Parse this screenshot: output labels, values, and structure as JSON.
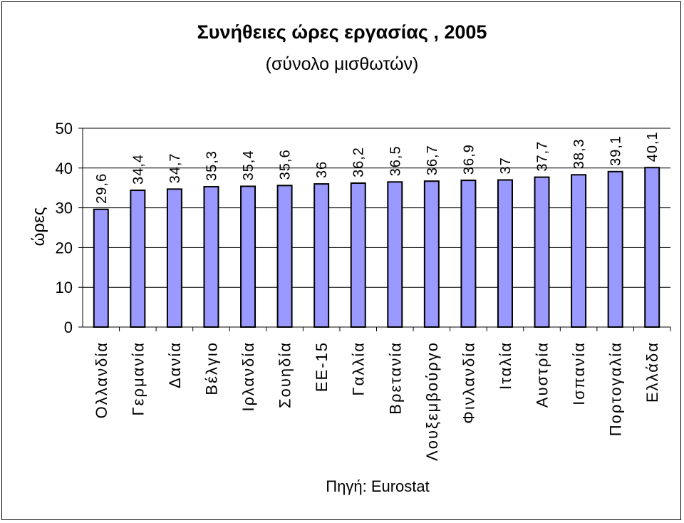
{
  "chart_data": {
    "type": "bar",
    "title": "Συνήθειες ώρες εργασίας , 2005",
    "subtitle": "(σύνολο μισθωτών)",
    "ylabel": "ώρες",
    "xlabel": "",
    "ylim": [
      0,
      50
    ],
    "yticks": [
      0,
      10,
      20,
      30,
      40,
      50
    ],
    "grid": true,
    "categories": [
      "Ολλανδία",
      "Γερμανία",
      "Δανία",
      "Βέλγιο",
      "Ιρλανδία",
      "Σουηδία",
      "ΕΕ-15",
      "Γαλλία",
      "Βρετανία",
      "Λουξεμβούργο",
      "Φινλανδία",
      "Ιταλία",
      "Αυστρία",
      "Ισπανία",
      "Πορτογαλία",
      "Ελλάδα"
    ],
    "values": [
      29.6,
      34.4,
      34.7,
      35.3,
      35.4,
      35.6,
      36,
      36.2,
      36.5,
      36.7,
      36.9,
      37,
      37.7,
      38.3,
      39.1,
      40.1
    ],
    "value_labels": [
      "29,6",
      "34,4",
      "34,7",
      "35,3",
      "35,4",
      "35,6",
      "36",
      "36,2",
      "36,5",
      "36,7",
      "36,9",
      "37",
      "37,7",
      "38,3",
      "39,1",
      "40,1"
    ],
    "bar_color": "#9999ff",
    "source": "Πηγή: Eurostat"
  }
}
